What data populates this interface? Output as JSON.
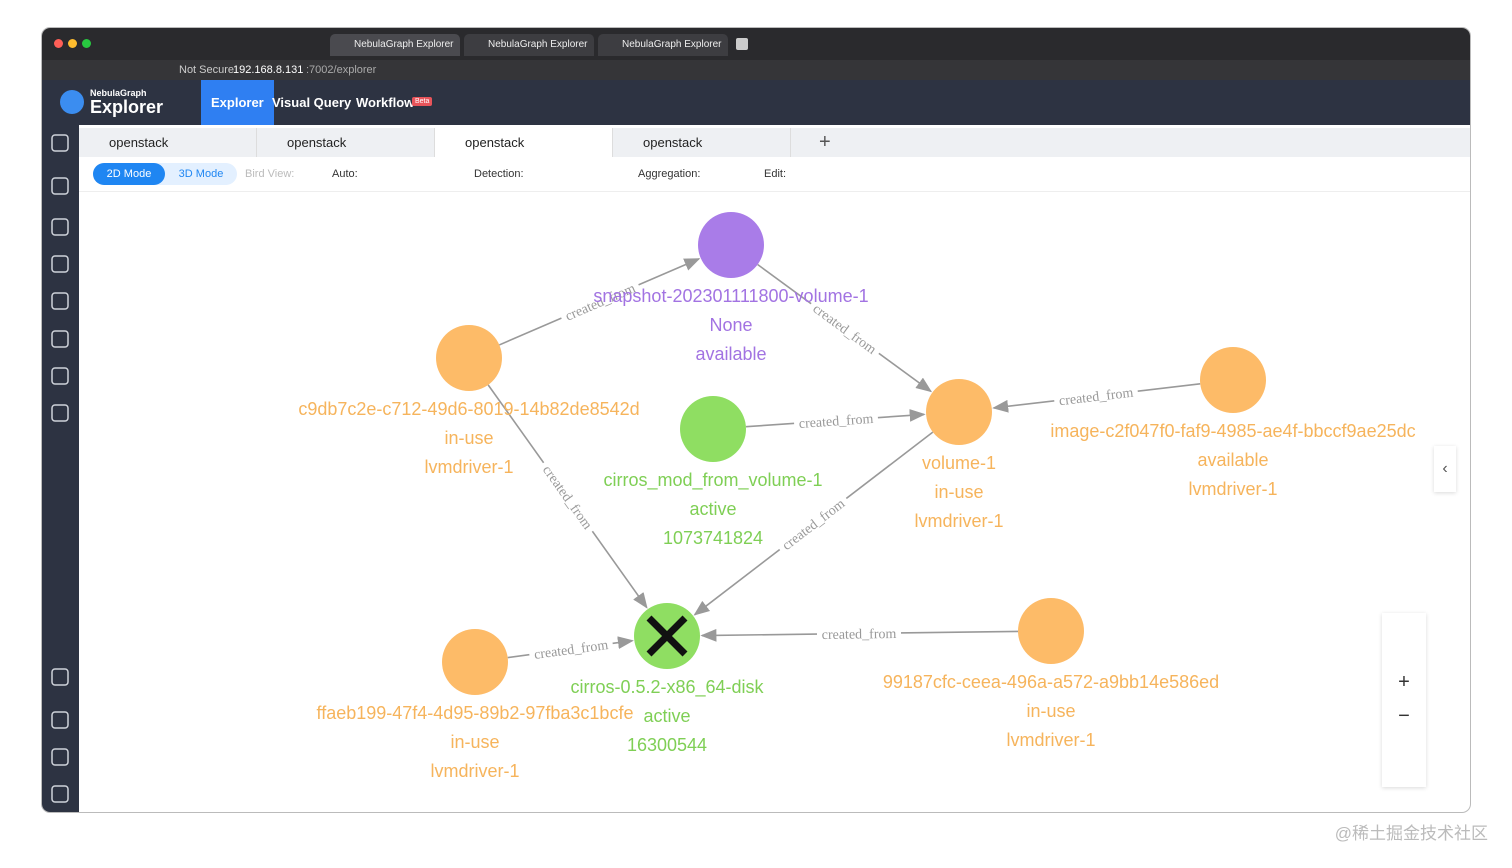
{
  "browser": {
    "tabs": [
      "NebulaGraph Explorer",
      "NebulaGraph Explorer",
      "NebulaGraph Explorer"
    ],
    "security": "Not Secure",
    "host": "192.168.8.131",
    "path": ":7002/explorer"
  },
  "app": {
    "logo_small": "NebulaGraph",
    "logo": "Explorer",
    "nav": [
      "Explorer",
      "Visual Query",
      "Workflow"
    ],
    "badge": "Beta"
  },
  "tabs": [
    "openstack",
    "openstack",
    "openstack",
    "openstack"
  ],
  "toolbar": {
    "modes": [
      "2D Mode",
      "3D Mode"
    ],
    "bird_view": "Bird View:",
    "auto": "Auto:",
    "detection": "Detection:",
    "aggregation": "Aggregation:",
    "edit": "Edit:"
  },
  "graph": {
    "nodes": [
      {
        "color": "#a97ce8",
        "text_color": "#a273e2",
        "lines": [
          "snapshot-202301111800-volume-1",
          "None",
          "available"
        ]
      },
      {
        "color": "#fdbb68",
        "text_color": "#f6b45c",
        "lines": [
          "c9db7c2e-c712-49d6-8019-14b82de8542d",
          "in-use",
          "lvmdriver-1"
        ]
      },
      {
        "color": "#8fde62",
        "text_color": "#7fcf55",
        "lines": [
          "cirros_mod_from_volume-1",
          "active",
          "1073741824"
        ]
      },
      {
        "color": "#fdbb68",
        "text_color": "#f6b45c",
        "lines": [
          "volume-1",
          "in-use",
          "lvmdriver-1"
        ]
      },
      {
        "color": "#fdbb68",
        "text_color": "#f6b45c",
        "lines": [
          "image-c2f047f0-faf9-4985-ae4f-bbccf9ae25dc",
          "available",
          "lvmdriver-1"
        ]
      },
      {
        "color": "#8fde62",
        "text_color": "#7fcf55",
        "lines": [
          "cirros-0.5.2-x86_64-disk",
          "active",
          "16300544"
        ]
      },
      {
        "color": "#fdbb68",
        "text_color": "#f6b45c",
        "lines": [
          "ffaeb199-47f4-4d95-89b2-97fba3c1bcfe",
          "in-use",
          "lvmdriver-1"
        ]
      },
      {
        "color": "#fdbb68",
        "text_color": "#f6b45c",
        "lines": [
          "99187cfc-ceea-496a-a572-a9bb14e586ed",
          "in-use",
          "lvmdriver-1"
        ]
      }
    ],
    "edges": [
      "created_from",
      "created_from",
      "created_from",
      "created_from",
      "created_from",
      "created_from",
      "created_from",
      "created_from"
    ]
  },
  "watermark": "@稀土掘金技术社区"
}
